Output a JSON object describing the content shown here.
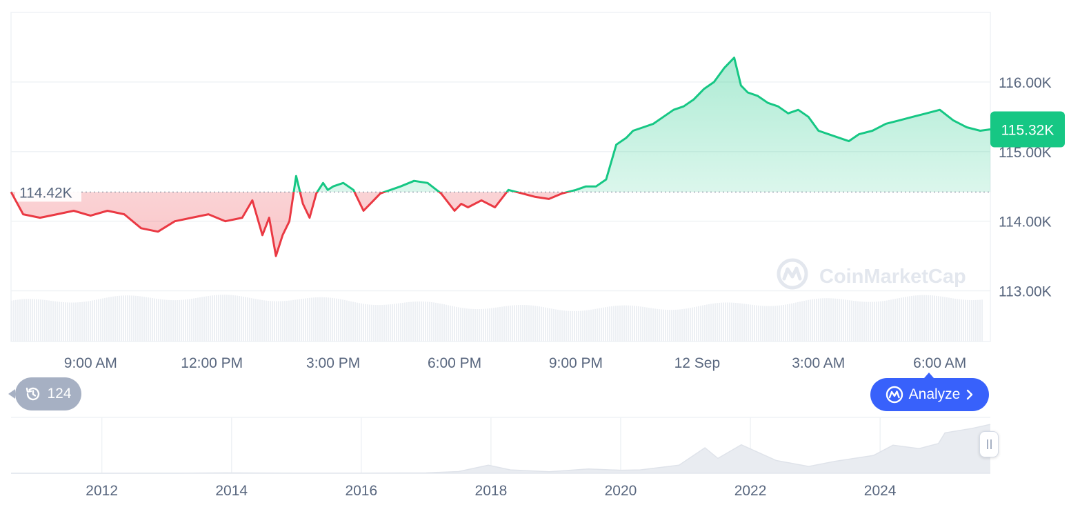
{
  "colors": {
    "up": "#16c784",
    "down": "#ea3943",
    "grid": "#eff2f5",
    "axis_text": "#58667e",
    "history_badge": "#a6b0c3",
    "analyze": "#3861fb"
  },
  "watermark": {
    "brand": "CoinMarketCap",
    "icon": "coinmarketcap-logo-icon"
  },
  "history": {
    "icon": "history-clock-icon",
    "count": "124"
  },
  "analyze": {
    "label": "Analyze",
    "icon": "coinmarketcap-logo-icon",
    "arrow_icon": "chevron-right-icon"
  },
  "chart_data": [
    {
      "type": "line",
      "title": "",
      "y_tick_labels": [
        "113.00K",
        "114.00K",
        "115.00K",
        "116.00K"
      ],
      "y_ticks": [
        113000,
        114000,
        115000,
        116000
      ],
      "ylim": [
        112500,
        117000
      ],
      "x_tick_labels": [
        "9:00 AM",
        "12:00 PM",
        "3:00 PM",
        "6:00 PM",
        "9:00 PM",
        "12 Sep",
        "3:00 AM",
        "6:00 AM"
      ],
      "x_ticks": [
        "2025-09-11 09:00",
        "2025-09-11 12:00",
        "2025-09-11 15:00",
        "2025-09-11 18:00",
        "2025-09-11 21:00",
        "2025-09-12 00:00",
        "2025-09-12 03:00",
        "2025-09-12 06:00"
      ],
      "xlim": [
        "2025-09-11 07:02",
        "2025-09-12 07:15"
      ],
      "baseline": {
        "value": 114420,
        "label": "114.42K"
      },
      "current": {
        "value": 115320,
        "label": "115.32K"
      },
      "grid": true,
      "volume_bars": true,
      "series": [
        {
          "x": [
            "2025-09-11 07:02",
            "2025-09-11 07:20",
            "2025-09-11 07:45",
            "2025-09-11 08:10",
            "2025-09-11 08:35",
            "2025-09-11 09:00",
            "2025-09-11 09:25",
            "2025-09-11 09:50",
            "2025-09-11 10:15",
            "2025-09-11 10:40",
            "2025-09-11 11:05",
            "2025-09-11 11:30",
            "2025-09-11 11:55",
            "2025-09-11 12:20",
            "2025-09-11 12:45",
            "2025-09-11 13:00",
            "2025-09-11 13:15",
            "2025-09-11 13:25",
            "2025-09-11 13:35",
            "2025-09-11 13:45",
            "2025-09-11 13:55",
            "2025-09-11 14:05",
            "2025-09-11 14:15",
            "2025-09-11 14:25",
            "2025-09-11 14:35",
            "2025-09-11 14:45",
            "2025-09-11 14:52",
            "2025-09-11 15:00",
            "2025-09-11 15:15",
            "2025-09-11 15:30",
            "2025-09-11 15:45",
            "2025-09-11 16:00",
            "2025-09-11 16:10",
            "2025-09-11 16:25",
            "2025-09-11 16:40",
            "2025-09-11 17:00",
            "2025-09-11 17:20",
            "2025-09-11 17:40",
            "2025-09-11 18:00",
            "2025-09-11 18:10",
            "2025-09-11 18:20",
            "2025-09-11 18:40",
            "2025-09-11 19:00",
            "2025-09-11 19:20",
            "2025-09-11 19:40",
            "2025-09-11 20:00",
            "2025-09-11 20:20",
            "2025-09-11 20:40",
            "2025-09-11 21:00",
            "2025-09-11 21:15",
            "2025-09-11 21:30",
            "2025-09-11 21:45",
            "2025-09-11 22:00",
            "2025-09-11 22:15",
            "2025-09-11 22:25",
            "2025-09-11 22:40",
            "2025-09-11 22:55",
            "2025-09-11 23:10",
            "2025-09-11 23:25",
            "2025-09-11 23:40",
            "2025-09-11 23:55",
            "2025-09-12 00:10",
            "2025-09-12 00:25",
            "2025-09-12 00:40",
            "2025-09-12 00:55",
            "2025-09-12 01:05",
            "2025-09-12 01:15",
            "2025-09-12 01:30",
            "2025-09-12 01:45",
            "2025-09-12 02:00",
            "2025-09-12 02:15",
            "2025-09-12 02:30",
            "2025-09-12 02:45",
            "2025-09-12 03:00",
            "2025-09-12 03:15",
            "2025-09-12 03:30",
            "2025-09-12 03:45",
            "2025-09-12 04:00",
            "2025-09-12 04:20",
            "2025-09-12 04:40",
            "2025-09-12 05:00",
            "2025-09-12 05:20",
            "2025-09-12 05:40",
            "2025-09-12 06:00",
            "2025-09-12 06:20",
            "2025-09-12 06:40",
            "2025-09-12 07:00",
            "2025-09-12 07:15"
          ],
          "y": [
            114420,
            114100,
            114050,
            114100,
            114150,
            114080,
            114150,
            114100,
            113900,
            113850,
            114000,
            114050,
            114100,
            114000,
            114050,
            114300,
            113800,
            114050,
            113500,
            113800,
            114000,
            114650,
            114250,
            114050,
            114400,
            114550,
            114450,
            114500,
            114550,
            114450,
            114150,
            114300,
            114400,
            114450,
            114500,
            114580,
            114550,
            114400,
            114150,
            114250,
            114200,
            114300,
            114200,
            114450,
            114400,
            114350,
            114320,
            114400,
            114450,
            114500,
            114500,
            114600,
            115100,
            115200,
            115300,
            115350,
            115400,
            115500,
            115600,
            115650,
            115750,
            115900,
            116000,
            116200,
            116350,
            115950,
            115850,
            115800,
            115700,
            115650,
            115550,
            115600,
            115500,
            115300,
            115250,
            115200,
            115150,
            115250,
            115300,
            115400,
            115450,
            115500,
            115550,
            115600,
            115450,
            115350,
            115300,
            115320
          ]
        }
      ]
    },
    {
      "type": "area",
      "title": "",
      "x_tick_labels": [
        "2012",
        "2014",
        "2016",
        "2018",
        "2020",
        "2022",
        "2024"
      ],
      "x_ticks": [
        2012,
        2014,
        2016,
        2018,
        2020,
        2022,
        2024
      ],
      "xlim": [
        2010.6,
        2025.7
      ],
      "ylim": [
        0,
        120000
      ],
      "series": [
        {
          "x": [
            2010.6,
            2013.0,
            2013.9,
            2015.0,
            2016.0,
            2017.0,
            2017.5,
            2017.96,
            2018.3,
            2018.9,
            2019.5,
            2020.0,
            2020.3,
            2020.9,
            2021.3,
            2021.5,
            2021.86,
            2022.4,
            2022.9,
            2023.3,
            2023.9,
            2024.2,
            2024.6,
            2024.9,
            2025.0,
            2025.4,
            2025.7
          ],
          "y": [
            0,
            100,
            900,
            300,
            400,
            1000,
            4000,
            19000,
            8000,
            3700,
            10000,
            7200,
            8000,
            19000,
            60000,
            35000,
            67000,
            30000,
            16000,
            28000,
            42000,
            66000,
            58000,
            70000,
            95000,
            105000,
            115000
          ]
        }
      ]
    }
  ]
}
